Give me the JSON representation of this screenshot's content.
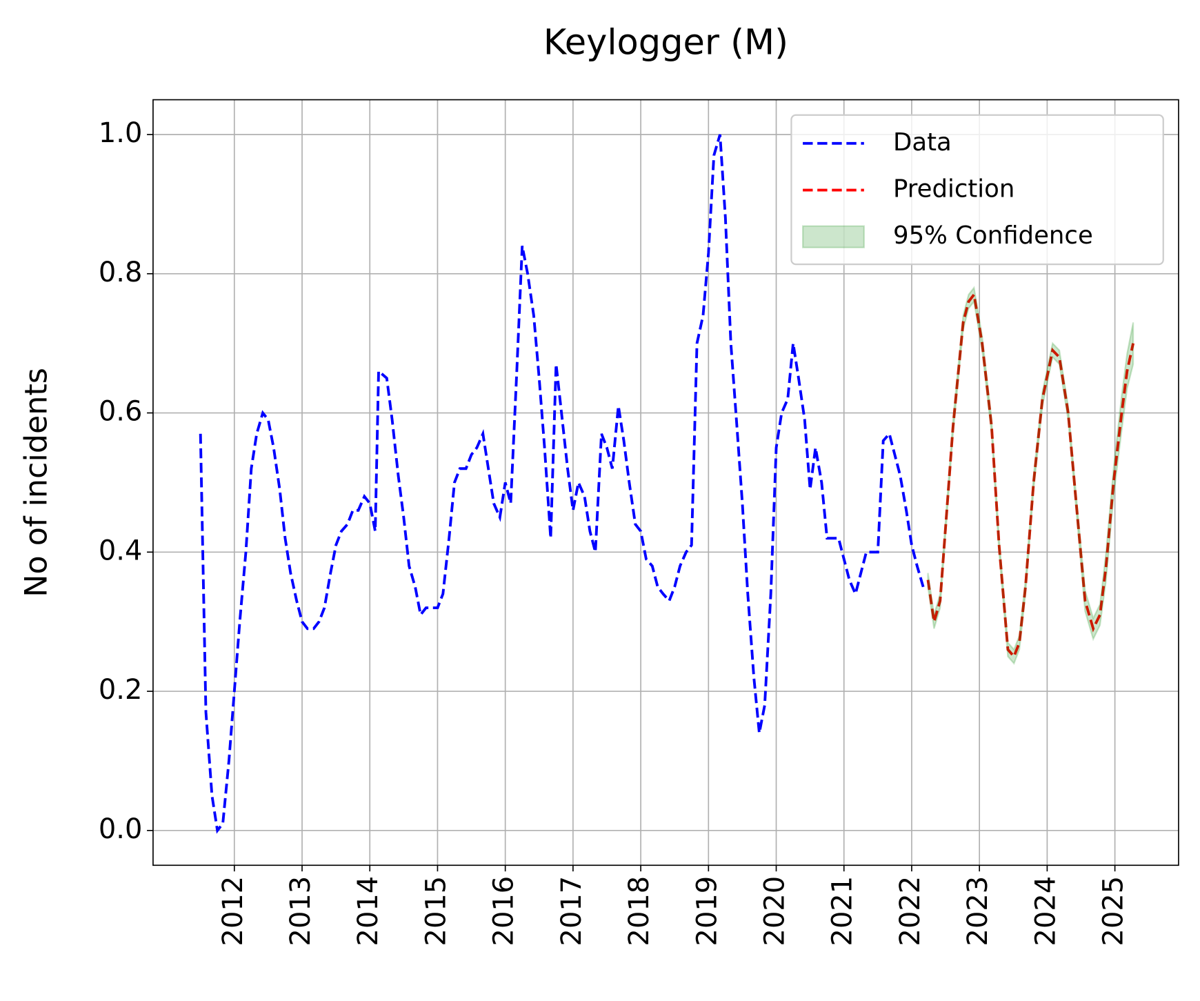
{
  "chart_data": {
    "type": "line",
    "title": "Keylogger (M)",
    "y_label": "No of incidents",
    "xlim": [
      2010.8,
      2025.94
    ],
    "ylim": [
      -0.05,
      1.05
    ],
    "xticks": [
      2012,
      2013,
      2014,
      2015,
      2016,
      2017,
      2018,
      2019,
      2020,
      2021,
      2022,
      2023,
      2024,
      2025
    ],
    "yticks": [
      {
        "value": 0,
        "label": "0.0"
      },
      0.2,
      0.4,
      0.6,
      0.8,
      {
        "value": 1,
        "label": "1.0"
      }
    ],
    "grid": true,
    "legend": "upper right",
    "series": [
      {
        "name": "Data",
        "color": "#0000ff",
        "x": [
          2011.5,
          2011.58,
          2011.67,
          2011.75,
          2011.83,
          2011.92,
          2012,
          2012.08,
          2012.17,
          2012.25,
          2012.33,
          2012.42,
          2012.5,
          2012.58,
          2012.67,
          2012.75,
          2012.83,
          2012.92,
          2013,
          2013.08,
          2013.17,
          2013.25,
          2013.33,
          2013.42,
          2013.5,
          2013.58,
          2013.67,
          2013.75,
          2013.83,
          2013.92,
          2014,
          2014.08,
          2014.13,
          2014.25,
          2014.33,
          2014.42,
          2014.5,
          2014.58,
          2014.67,
          2014.75,
          2014.83,
          2014.92,
          2015,
          2015.08,
          2015.17,
          2015.25,
          2015.33,
          2015.42,
          2015.5,
          2015.58,
          2015.67,
          2015.75,
          2015.83,
          2015.92,
          2016,
          2016.08,
          2016.17,
          2016.25,
          2016.33,
          2016.42,
          2016.5,
          2016.58,
          2016.67,
          2016.75,
          2016.83,
          2016.92,
          2017,
          2017.08,
          2017.17,
          2017.25,
          2017.33,
          2017.42,
          2017.5,
          2017.58,
          2017.67,
          2017.75,
          2017.83,
          2017.92,
          2018,
          2018.08,
          2018.17,
          2018.25,
          2018.33,
          2018.42,
          2018.5,
          2018.58,
          2018.67,
          2018.75,
          2018.83,
          2018.92,
          2019,
          2019.08,
          2019.17,
          2019.25,
          2019.33,
          2019.42,
          2019.5,
          2019.58,
          2019.67,
          2019.75,
          2019.83,
          2019.92,
          2020,
          2020.08,
          2020.17,
          2020.25,
          2020.33,
          2020.42,
          2020.5,
          2020.58,
          2020.67,
          2020.75,
          2020.83,
          2020.92,
          2021,
          2021.08,
          2021.17,
          2021.25,
          2021.33,
          2021.42,
          2021.5,
          2021.58,
          2021.67,
          2021.75,
          2021.83,
          2021.92,
          2022,
          2022.08,
          2022.17
        ],
        "values": [
          0.57,
          0.17,
          0.05,
          0.0,
          0.01,
          0.1,
          0.2,
          0.3,
          0.4,
          0.52,
          0.57,
          0.6,
          0.59,
          0.55,
          0.49,
          0.42,
          0.37,
          0.33,
          0.3,
          0.29,
          0.29,
          0.3,
          0.32,
          0.37,
          0.41,
          0.43,
          0.44,
          0.46,
          0.46,
          0.48,
          0.47,
          0.43,
          0.66,
          0.65,
          0.59,
          0.51,
          0.45,
          0.38,
          0.35,
          0.31,
          0.32,
          0.32,
          0.32,
          0.34,
          0.42,
          0.5,
          0.52,
          0.52,
          0.54,
          0.55,
          0.57,
          0.52,
          0.47,
          0.45,
          0.5,
          0.47,
          0.66,
          0.84,
          0.8,
          0.74,
          0.65,
          0.55,
          0.42,
          0.67,
          0.6,
          0.52,
          0.46,
          0.5,
          0.48,
          0.43,
          0.4,
          0.57,
          0.55,
          0.52,
          0.61,
          0.56,
          0.5,
          0.44,
          0.43,
          0.39,
          0.38,
          0.35,
          0.34,
          0.33,
          0.35,
          0.38,
          0.4,
          0.41,
          0.7,
          0.74,
          0.83,
          0.97,
          1.0,
          0.88,
          0.7,
          0.58,
          0.47,
          0.34,
          0.22,
          0.14,
          0.18,
          0.34,
          0.55,
          0.6,
          0.62,
          0.7,
          0.65,
          0.59,
          0.49,
          0.55,
          0.5,
          0.42,
          0.42,
          0.42,
          0.39,
          0.36,
          0.34,
          0.37,
          0.4,
          0.4,
          0.4,
          0.56,
          0.57,
          0.54,
          0.51,
          0.46,
          0.41,
          0.38,
          0.35
        ]
      },
      {
        "name": "Prediction",
        "color": "#ff0000",
        "x": [
          2022.24,
          2022.33,
          2022.42,
          2022.61,
          2022.76,
          2022.84,
          2022.92,
          2023.04,
          2023.18,
          2023.29,
          2023.42,
          2023.51,
          2023.59,
          2023.68,
          2023.8,
          2023.93,
          2024.08,
          2024.18,
          2024.31,
          2024.42,
          2024.56,
          2024.68,
          2024.78,
          2024.87,
          2024.98,
          2025.1,
          2025.18,
          2025.27
        ],
        "values": [
          0.36,
          0.3,
          0.33,
          0.58,
          0.73,
          0.76,
          0.77,
          0.7,
          0.58,
          0.41,
          0.26,
          0.25,
          0.27,
          0.35,
          0.5,
          0.62,
          0.69,
          0.68,
          0.6,
          0.48,
          0.33,
          0.29,
          0.31,
          0.38,
          0.5,
          0.6,
          0.66,
          0.7
        ]
      },
      {
        "name": "95% Confidence",
        "color": "#008000",
        "x": [
          2022.24,
          2022.33,
          2022.42,
          2022.61,
          2022.76,
          2022.84,
          2022.92,
          2023.04,
          2023.18,
          2023.29,
          2023.42,
          2023.51,
          2023.59,
          2023.68,
          2023.8,
          2023.93,
          2024.08,
          2024.18,
          2024.31,
          2024.42,
          2024.56,
          2024.68,
          2024.78,
          2024.87,
          2024.98,
          2025.1,
          2025.18,
          2025.27
        ],
        "lower": [
          0.35,
          0.29,
          0.32,
          0.57,
          0.72,
          0.75,
          0.76,
          0.69,
          0.57,
          0.4,
          0.25,
          0.24,
          0.26,
          0.34,
          0.49,
          0.61,
          0.68,
          0.67,
          0.59,
          0.47,
          0.315,
          0.275,
          0.295,
          0.36,
          0.48,
          0.575,
          0.635,
          0.67
        ],
        "upper": [
          0.37,
          0.31,
          0.34,
          0.59,
          0.74,
          0.77,
          0.78,
          0.71,
          0.59,
          0.42,
          0.27,
          0.26,
          0.28,
          0.36,
          0.51,
          0.63,
          0.7,
          0.69,
          0.61,
          0.49,
          0.345,
          0.305,
          0.325,
          0.4,
          0.52,
          0.625,
          0.685,
          0.73
        ]
      }
    ]
  }
}
